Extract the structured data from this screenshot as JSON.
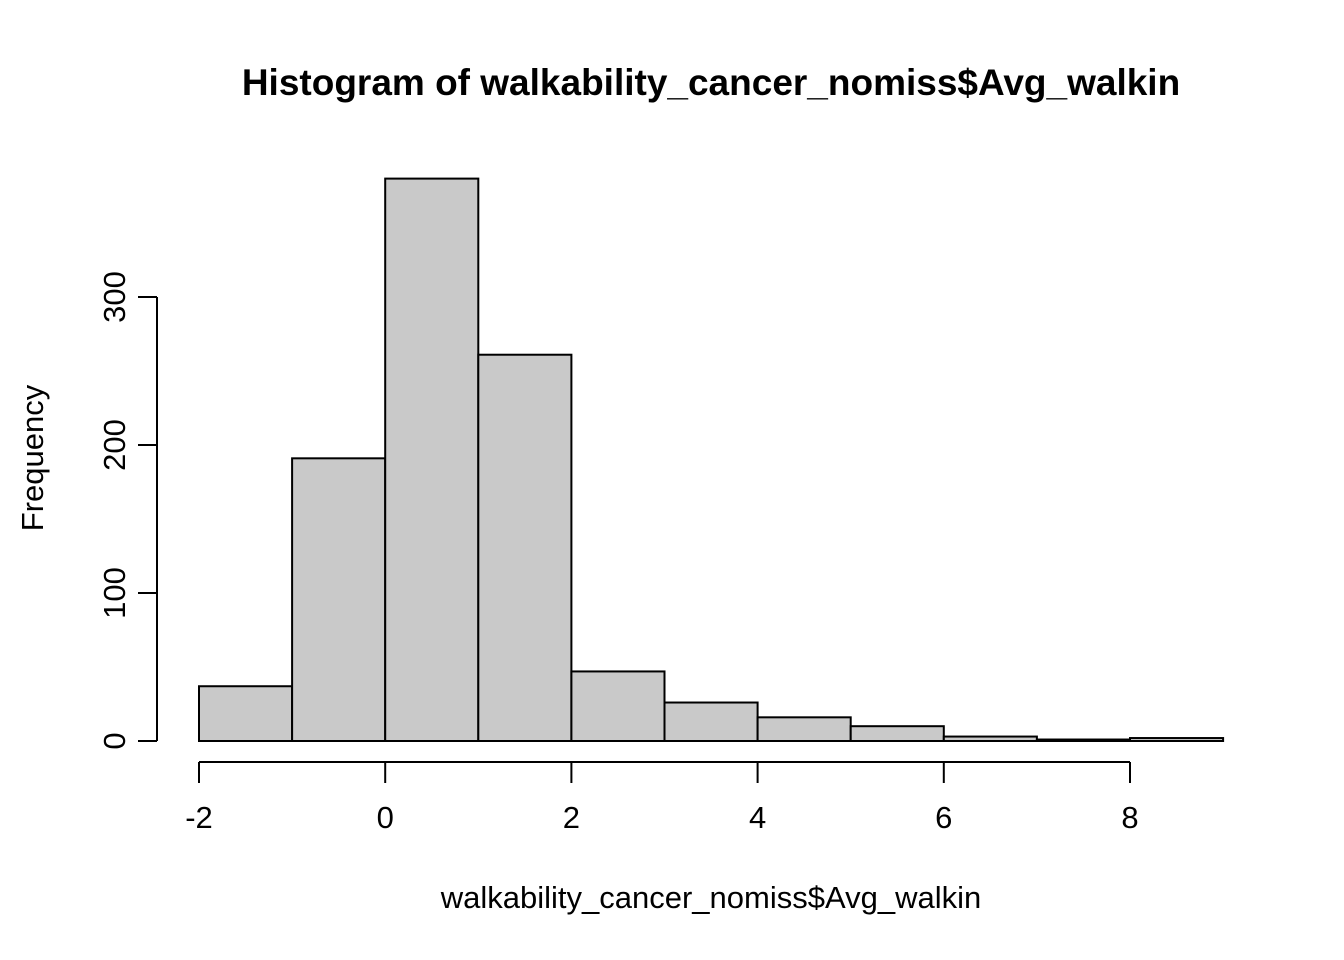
{
  "chart_data": {
    "type": "bar",
    "subtype": "histogram",
    "title": "Histogram of walkability_cancer_nomiss$Avg_walkin",
    "xlabel": "walkability_cancer_nomiss$Avg_walkin",
    "ylabel": "Frequency",
    "bin_edges": [
      -2,
      -1,
      0,
      1,
      2,
      3,
      4,
      5,
      6,
      7,
      8,
      9
    ],
    "frequencies": [
      37,
      191,
      380,
      261,
      47,
      26,
      16,
      10,
      3,
      1,
      2
    ],
    "x_ticks": [
      "-2",
      "0",
      "2",
      "4",
      "6",
      "8"
    ],
    "x_tick_values": [
      -2,
      0,
      2,
      4,
      6,
      8
    ],
    "y_ticks": [
      "0",
      "100",
      "200",
      "300"
    ],
    "y_tick_values": [
      0,
      100,
      200,
      300
    ],
    "xlim": [
      -2,
      9
    ],
    "ylim": [
      0,
      380
    ],
    "grid": false,
    "legend": "none",
    "bar_fill": "#C9C9C9",
    "bar_border": "#000000",
    "axis_color": "#000000",
    "text_color": "#000000",
    "background": "#FFFFFF"
  }
}
